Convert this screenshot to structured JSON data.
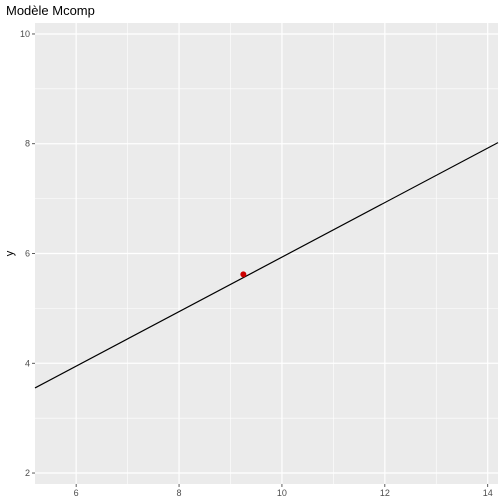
{
  "chart_data": {
    "type": "line",
    "title": "Modèle Mcomp",
    "xlabel": "",
    "ylabel": "y",
    "xlim": [
      5.2,
      14.2
    ],
    "ylim": [
      1.8,
      10.2
    ],
    "x_ticks": [
      6,
      8,
      10,
      12,
      14
    ],
    "y_ticks": [
      2,
      4,
      6,
      8,
      10
    ],
    "grid": true,
    "background": "#ebebeb",
    "grid_color": "#ffffff",
    "series": [
      {
        "type": "line",
        "color": "#000000",
        "x": [
          5.2,
          14.2
        ],
        "y": [
          3.55,
          8.02
        ]
      }
    ],
    "points": [
      {
        "x": 9.25,
        "y": 5.62,
        "color": "#cc0000"
      }
    ]
  }
}
